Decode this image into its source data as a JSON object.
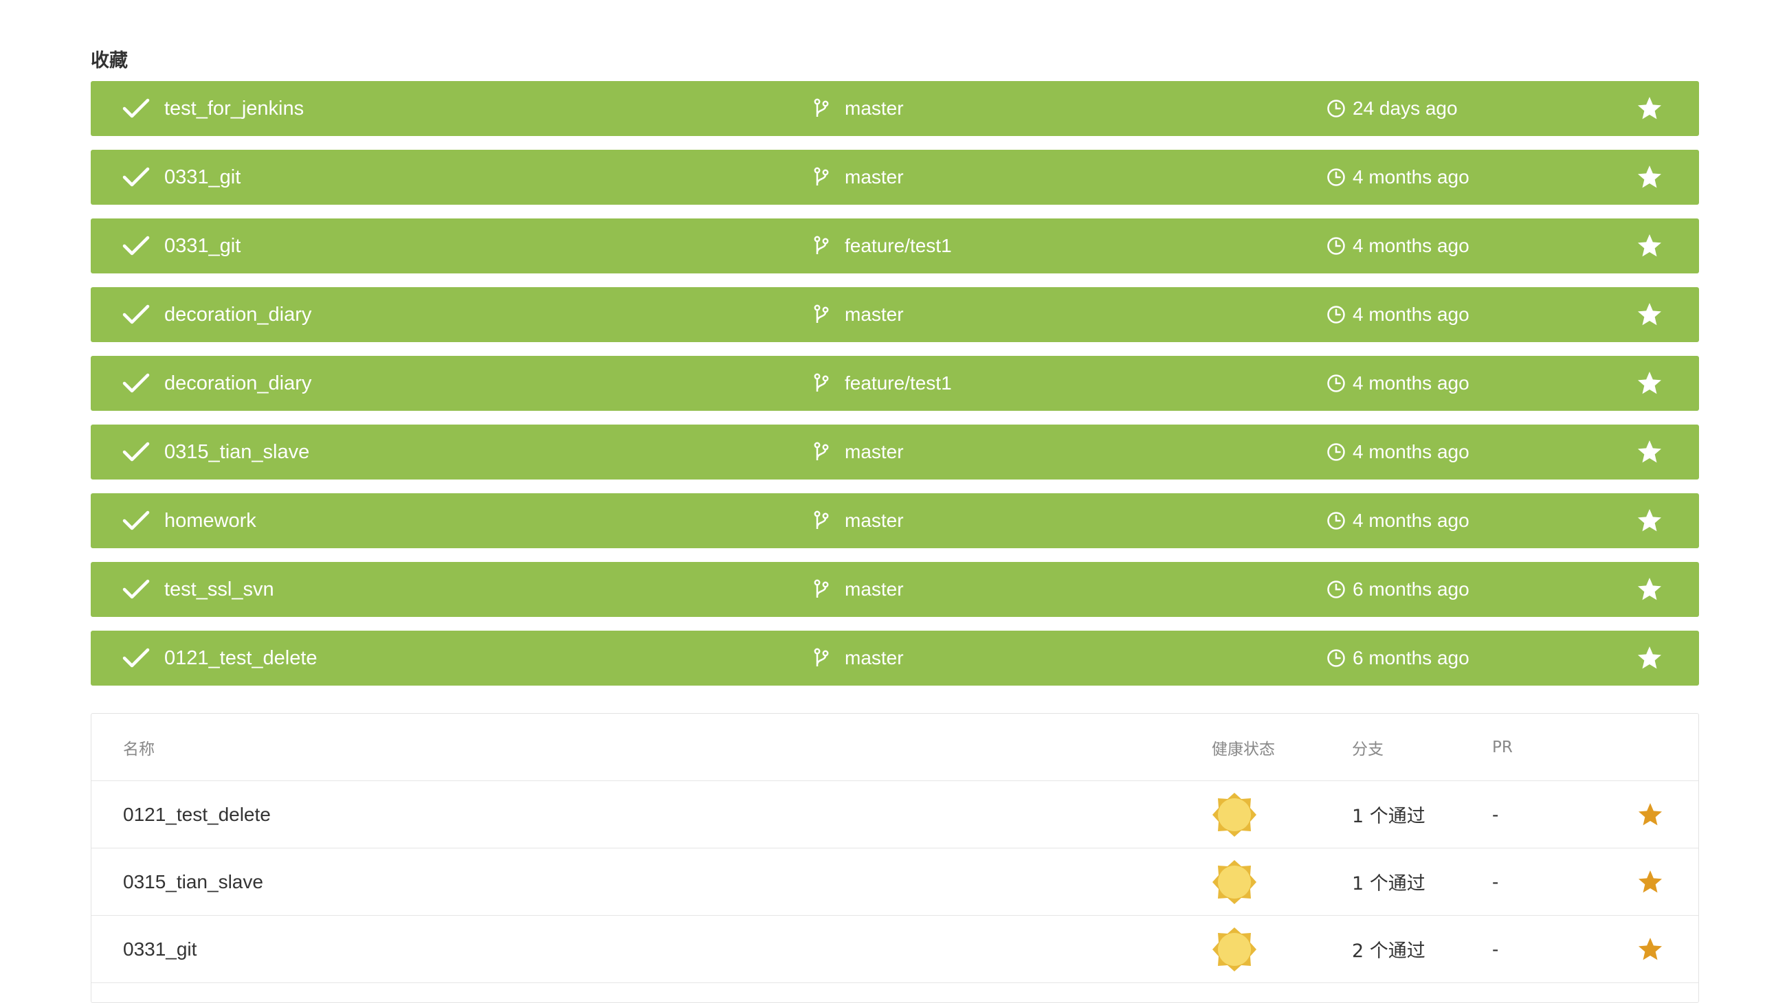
{
  "favorites_title": "收藏",
  "favorites": [
    {
      "name": "test_for_jenkins",
      "branch": "master",
      "time": "24 days ago"
    },
    {
      "name": "0331_git",
      "branch": "master",
      "time": "4 months ago"
    },
    {
      "name": "0331_git",
      "branch": "feature/test1",
      "time": "4 months ago"
    },
    {
      "name": "decoration_diary",
      "branch": "master",
      "time": "4 months ago"
    },
    {
      "name": "decoration_diary",
      "branch": "feature/test1",
      "time": "4 months ago"
    },
    {
      "name": "0315_tian_slave",
      "branch": "master",
      "time": "4 months ago"
    },
    {
      "name": "homework",
      "branch": "master",
      "time": "4 months ago"
    },
    {
      "name": "test_ssl_svn",
      "branch": "master",
      "time": "6 months ago"
    },
    {
      "name": "0121_test_delete",
      "branch": "master",
      "time": "6 months ago"
    }
  ],
  "table": {
    "headers": {
      "name": "名称",
      "health": "健康状态",
      "branch": "分支",
      "pr": "PR"
    },
    "rows": [
      {
        "name": "0121_test_delete",
        "health_icon": "sunny-weather-icon",
        "branch": "1 个通过",
        "pr": "-"
      },
      {
        "name": "0315_tian_slave",
        "health_icon": "sunny-weather-icon",
        "branch": "1 个通过",
        "pr": "-"
      },
      {
        "name": "0331_git",
        "health_icon": "sunny-weather-icon",
        "branch": "2 个通过",
        "pr": "-"
      }
    ]
  },
  "colors": {
    "success_green": "#93bf4f",
    "favorite_star": "#e09a21",
    "sun_fill": "#f7da6b"
  },
  "icons": {
    "status": "checkmark-icon",
    "branch": "git-branch-icon",
    "time": "clock-icon",
    "favorite": "star-icon"
  }
}
